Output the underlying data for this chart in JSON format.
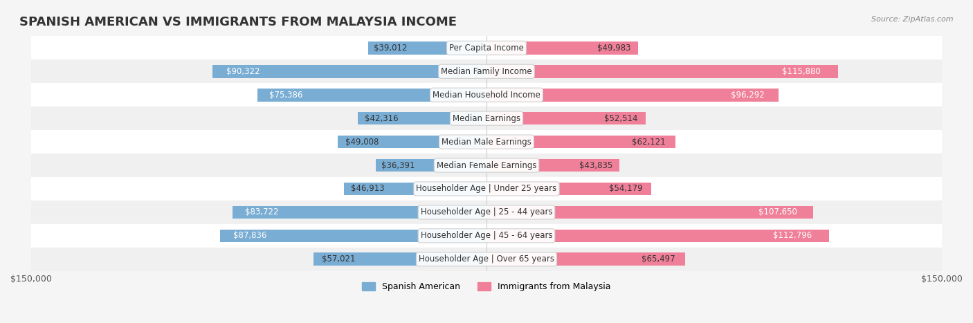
{
  "title": "SPANISH AMERICAN VS IMMIGRANTS FROM MALAYSIA INCOME",
  "source": "Source: ZipAtlas.com",
  "categories": [
    "Per Capita Income",
    "Median Family Income",
    "Median Household Income",
    "Median Earnings",
    "Median Male Earnings",
    "Median Female Earnings",
    "Householder Age | Under 25 years",
    "Householder Age | 25 - 44 years",
    "Householder Age | 45 - 64 years",
    "Householder Age | Over 65 years"
  ],
  "spanish_american": [
    39012,
    90322,
    75386,
    42316,
    49008,
    36391,
    46913,
    83722,
    87836,
    57021
  ],
  "malaysia": [
    49983,
    115880,
    96292,
    52514,
    62121,
    43835,
    54179,
    107650,
    112796,
    65497
  ],
  "spanish_labels": [
    "$39,012",
    "$90,322",
    "$75,386",
    "$42,316",
    "$49,008",
    "$36,391",
    "$46,913",
    "$83,722",
    "$87,836",
    "$57,021"
  ],
  "malaysia_labels": [
    "$49,983",
    "$115,880",
    "$96,292",
    "$52,514",
    "$62,121",
    "$43,835",
    "$54,179",
    "$107,650",
    "$112,796",
    "$65,497"
  ],
  "max_value": 150000,
  "bar_height": 0.55,
  "color_spanish": "#7aadd4",
  "color_malaysia": "#f08099",
  "color_spanish_dark": "#5b9bc8",
  "color_malaysia_dark": "#e8607a",
  "bg_color": "#f5f5f5",
  "row_colors": [
    "#ffffff",
    "#f0f0f0"
  ],
  "label_fontsize": 8.5,
  "title_fontsize": 13,
  "category_fontsize": 8.5
}
